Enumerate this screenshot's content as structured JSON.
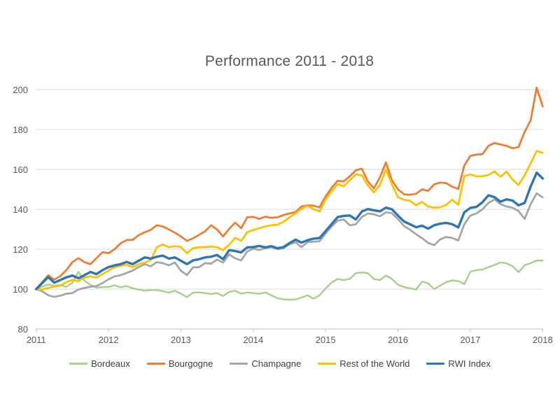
{
  "chart": {
    "title": "Performance 2011 - 2018"
  },
  "chart_data": {
    "type": "line",
    "title": "Performance 2011 - 2018",
    "x_unit": "month",
    "x_start": "2011-01",
    "x_end": "2018-01",
    "x_tick_labels": [
      "2011",
      "2012",
      "2013",
      "2014",
      "2015",
      "2016",
      "2017",
      "2018"
    ],
    "y_ticks": [
      80,
      100,
      120,
      140,
      160,
      180,
      200
    ],
    "ylim": [
      80,
      200
    ],
    "grid": "horizontal-only",
    "legend_position": "bottom",
    "gridline_color": "#D9D9D9",
    "axis_color": "#BFBFBF",
    "label_color": "#595959",
    "series": [
      {
        "name": "Bordeaux",
        "color": "#A9D18E",
        "stroke_width": 2.5,
        "values": [
          100,
          101.2,
          102.3,
          101.7,
          102.1,
          101.1,
          103.2,
          108.7,
          104.2,
          102.1,
          100.8,
          101.0,
          101.1,
          101.9,
          100.9,
          101.5,
          100.4,
          99.8,
          99.2,
          99.5,
          99.5,
          99.0,
          98.2,
          99.2,
          97.7,
          96.0,
          98.2,
          98.4,
          98.0,
          97.5,
          98.0,
          96.6,
          98.6,
          99.2,
          97.7,
          98.3,
          98.0,
          97.7,
          98.3,
          96.9,
          95.4,
          94.9,
          94.7,
          94.8,
          95.8,
          96.9,
          95.2,
          96.9,
          100.4,
          103.3,
          105.1,
          104.5,
          105.1,
          108.0,
          108.4,
          108.0,
          105.1,
          104.5,
          106.8,
          105.1,
          102.2,
          101.0,
          100.4,
          99.8,
          103.8,
          102.9,
          100.0,
          101.8,
          103.5,
          104.4,
          104.0,
          102.5,
          108.7,
          109.5,
          109.8,
          111.0,
          112.1,
          113.4,
          112.9,
          111.5,
          108.5,
          112.0,
          113.0,
          114.3,
          114.3
        ]
      },
      {
        "name": "Bourgogne",
        "color": "#ED7D31",
        "stroke_width": 2.75,
        "values": [
          100,
          103.5,
          107.0,
          104.7,
          106.5,
          109.5,
          113.5,
          115.5,
          113.5,
          112.5,
          115.5,
          118.5,
          118.0,
          120.0,
          122.9,
          124.6,
          124.7,
          127.0,
          128.5,
          129.7,
          132.0,
          131.4,
          129.9,
          128.3,
          126.4,
          124.2,
          125.4,
          127.2,
          128.9,
          132.0,
          129.9,
          126.4,
          130.2,
          133.3,
          130.5,
          136.0,
          136.2,
          135.2,
          136.3,
          135.7,
          136.0,
          137.1,
          137.9,
          138.6,
          141.4,
          142.0,
          141.8,
          141.0,
          146.5,
          150.8,
          154.3,
          154.0,
          156.5,
          159.5,
          160.4,
          154.0,
          150.5,
          156.0,
          163.5,
          154.5,
          150.0,
          147.5,
          147.3,
          147.8,
          150.0,
          149.2,
          152.5,
          153.4,
          153.1,
          151.3,
          150.2,
          162.0,
          166.8,
          167.4,
          167.6,
          171.8,
          173.2,
          172.5,
          171.8,
          170.6,
          171.2,
          178.8,
          184.6,
          201.0,
          191.5
        ]
      },
      {
        "name": "Champagne",
        "color": "#A5A5A5",
        "stroke_width": 2.75,
        "values": [
          100,
          98.9,
          96.9,
          96.1,
          96.7,
          97.7,
          98.0,
          99.8,
          100.6,
          101.2,
          101.5,
          103.0,
          104.9,
          106.4,
          107.0,
          108.1,
          109.3,
          111.0,
          112.5,
          111.4,
          113.5,
          113.0,
          111.9,
          113.4,
          109.2,
          107.0,
          110.9,
          110.9,
          113.0,
          112.7,
          114.8,
          113.3,
          117.4,
          115.4,
          114.4,
          118.8,
          120.3,
          119.6,
          120.5,
          121.0,
          120.0,
          120.5,
          122.5,
          123.5,
          121.0,
          123.5,
          123.8,
          124.0,
          127.9,
          131.4,
          134.3,
          134.9,
          132.0,
          132.5,
          136.1,
          137.9,
          137.5,
          136.5,
          138.5,
          138.0,
          135.1,
          131.6,
          129.8,
          127.5,
          125.5,
          123.2,
          122.0,
          125.0,
          126.1,
          125.6,
          124.4,
          132.5,
          136.8,
          137.9,
          140.0,
          143.2,
          145.0,
          142.6,
          141.4,
          140.8,
          139.1,
          135.2,
          142.6,
          148.0,
          146.0
        ]
      },
      {
        "name": "Rest of the World",
        "color": "#FFC000",
        "stroke_width": 2.75,
        "values": [
          100,
          99.8,
          100.6,
          101.2,
          101.7,
          103.5,
          104.6,
          104.0,
          105.8,
          106.4,
          105.8,
          107.5,
          109.3,
          111.0,
          111.6,
          112.2,
          111.0,
          112.5,
          113.3,
          114.5,
          121.0,
          122.4,
          121.0,
          121.5,
          121.1,
          118.0,
          120.5,
          121.0,
          121.0,
          121.3,
          121.0,
          119.5,
          122.2,
          125.7,
          124.2,
          128.5,
          129.7,
          130.5,
          131.4,
          132.0,
          132.3,
          133.7,
          136.0,
          137.9,
          140.3,
          141.8,
          140.0,
          139.0,
          145.0,
          149.1,
          152.6,
          151.5,
          154.5,
          157.5,
          157.0,
          151.9,
          148.5,
          152.0,
          160.0,
          152.5,
          146.0,
          144.8,
          144.2,
          142.0,
          143.7,
          141.4,
          140.8,
          141.0,
          142.2,
          144.8,
          142.2,
          156.7,
          157.5,
          156.5,
          156.6,
          157.2,
          159.0,
          156.3,
          158.9,
          154.9,
          152.2,
          157.0,
          163.0,
          169.2,
          168.3
        ]
      },
      {
        "name": "RWI Index",
        "color": "#2E75B6",
        "stroke_width": 3.4,
        "values": [
          100,
          103.0,
          106.0,
          103.2,
          104.6,
          105.9,
          106.8,
          105.4,
          107.0,
          108.6,
          107.5,
          109.5,
          111.0,
          111.9,
          112.5,
          113.6,
          112.5,
          114.2,
          115.9,
          115.3,
          116.2,
          116.8,
          115.3,
          115.9,
          114.2,
          112.5,
          114.4,
          115.0,
          115.9,
          116.2,
          117.1,
          115.0,
          119.5,
          119.1,
          118.4,
          120.9,
          121.1,
          121.6,
          120.9,
          121.5,
          120.5,
          121.0,
          123.0,
          124.8,
          123.3,
          124.5,
          125.3,
          125.6,
          129.1,
          132.6,
          136.1,
          136.7,
          136.9,
          134.9,
          138.9,
          140.1,
          139.5,
          139.0,
          140.8,
          140.0,
          136.8,
          133.9,
          132.5,
          131.0,
          131.8,
          130.3,
          132.0,
          132.8,
          133.2,
          132.5,
          130.9,
          138.5,
          140.7,
          141.2,
          143.5,
          147.0,
          146.1,
          143.8,
          145.0,
          144.4,
          142.0,
          143.2,
          151.4,
          158.4,
          155.4
        ]
      }
    ]
  }
}
